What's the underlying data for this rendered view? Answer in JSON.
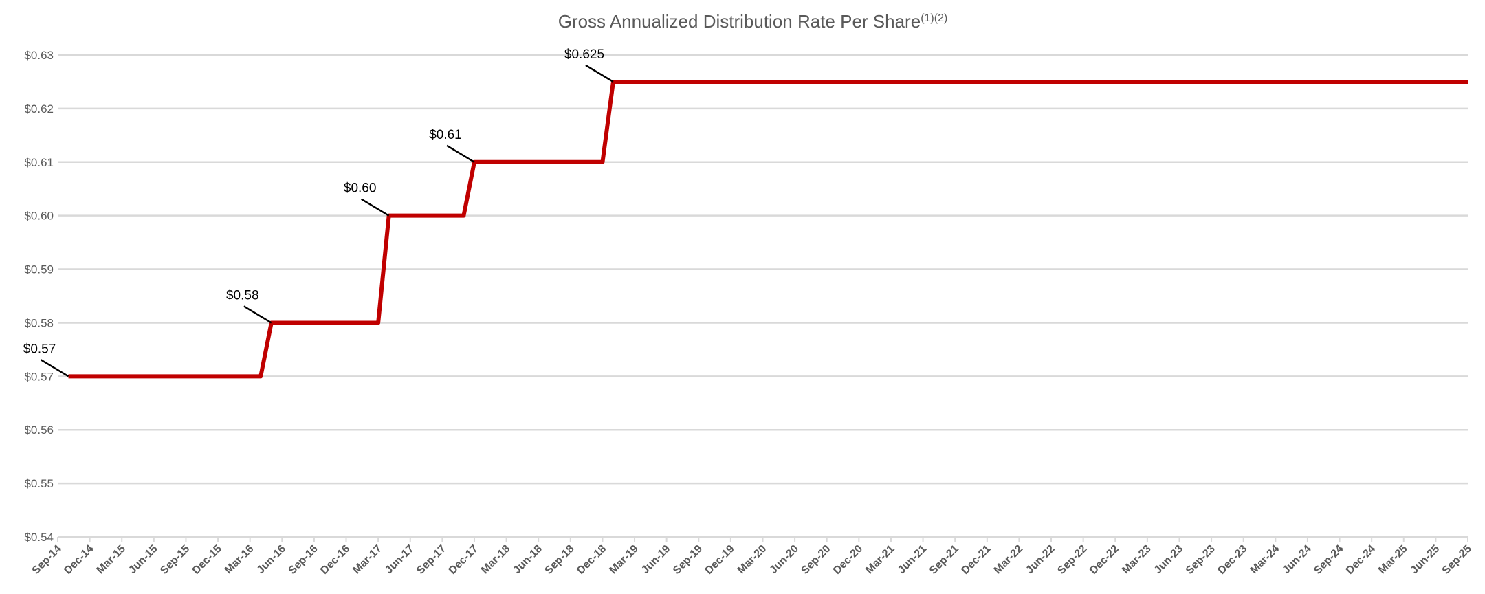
{
  "chart_data": {
    "type": "line",
    "title": "Gross Annualized Distribution Rate Per Share",
    "title_superscript": "(1)(2)",
    "xlabel": "",
    "ylabel": "",
    "ylim": [
      0.54,
      0.63
    ],
    "yticks": [
      "$0.63",
      "$0.62",
      "$0.61",
      "$0.60",
      "$0.59",
      "$0.58",
      "$0.57",
      "$0.56",
      "$0.55",
      "$0.54"
    ],
    "ytick_values": [
      0.63,
      0.62,
      0.61,
      0.6,
      0.59,
      0.58,
      0.57,
      0.56,
      0.55,
      0.54
    ],
    "x_range": [
      "Sep-14",
      "Sep-25"
    ],
    "x_frequency": "monthly",
    "xticks": [
      "Sep-14",
      "Dec-14",
      "Mar-15",
      "Jun-15",
      "Sep-15",
      "Dec-15",
      "Mar-16",
      "Jun-16",
      "Sep-16",
      "Dec-16",
      "Mar-17",
      "Jun-17",
      "Sep-17",
      "Dec-17",
      "Mar-18",
      "Jun-18",
      "Sep-18",
      "Dec-18",
      "Mar-19",
      "Jun-19",
      "Sep-19",
      "Dec-19",
      "Mar-20",
      "Jun-20",
      "Sep-20",
      "Dec-20",
      "Mar-21",
      "Jun-21",
      "Sep-21",
      "Dec-21",
      "Mar-22",
      "Jun-22",
      "Sep-22",
      "Dec-22",
      "Mar-23",
      "Jun-23",
      "Sep-23",
      "Dec-23",
      "Mar-24",
      "Jun-24",
      "Sep-24",
      "Dec-24",
      "Mar-25",
      "Jun-25",
      "Sep-25"
    ],
    "grid": true,
    "legend": "none",
    "series": [
      {
        "color": "#C00000",
        "segments": [
          {
            "start": "Oct-14",
            "end": "Apr-16",
            "value": 0.57
          },
          {
            "start": "May-16",
            "end": "Mar-17",
            "value": 0.58
          },
          {
            "start": "Apr-17",
            "end": "Nov-17",
            "value": 0.6
          },
          {
            "start": "Dec-17",
            "end": "Dec-18",
            "value": 0.61
          },
          {
            "start": "Jan-19",
            "end": "Sep-25",
            "value": 0.625
          }
        ]
      }
    ],
    "data_labels": [
      {
        "text": "$0.57",
        "at": "Oct-14",
        "value": 0.57
      },
      {
        "text": "$0.58",
        "at": "May-16",
        "value": 0.58
      },
      {
        "text": "$0.60",
        "at": "Apr-17",
        "value": 0.6
      },
      {
        "text": "$0.61",
        "at": "Dec-17",
        "value": 0.61
      },
      {
        "text": "$0.625",
        "at": "Jan-19",
        "value": 0.625
      }
    ],
    "colors": {
      "line": "#C00000",
      "grid": "#D9D9D9",
      "text": "#595959",
      "label": "#000000"
    }
  }
}
